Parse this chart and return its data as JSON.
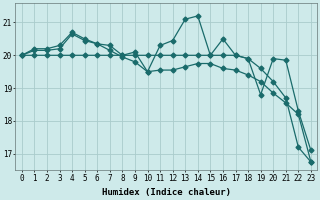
{
  "xlabel": "Humidex (Indice chaleur)",
  "background_color": "#ceeaea",
  "grid_color": "#aacccc",
  "line_color": "#1a6b6b",
  "x": [
    0,
    1,
    2,
    3,
    4,
    5,
    6,
    7,
    8,
    9,
    10,
    11,
    12,
    13,
    14,
    15,
    16,
    17,
    18,
    19,
    20,
    21,
    22,
    23
  ],
  "line1": [
    20.0,
    20.2,
    20.2,
    20.3,
    20.7,
    20.5,
    20.35,
    20.3,
    20.0,
    20.1,
    19.5,
    20.3,
    20.45,
    21.1,
    21.2,
    20.0,
    20.5,
    20.0,
    19.9,
    18.8,
    19.9,
    19.85,
    18.3,
    17.1
  ],
  "line2": [
    20.0,
    20.15,
    20.15,
    20.2,
    20.65,
    20.45,
    20.35,
    20.15,
    19.95,
    19.8,
    19.5,
    19.55,
    19.55,
    19.65,
    19.75,
    19.75,
    19.6,
    19.55,
    19.4,
    19.2,
    18.85,
    18.55,
    18.2,
    16.75
  ],
  "line3": [
    20.0,
    20.0,
    20.0,
    20.0,
    20.0,
    20.0,
    20.0,
    20.0,
    20.0,
    20.0,
    20.0,
    20.0,
    20.0,
    20.0,
    20.0,
    20.0,
    20.0,
    20.0,
    19.9,
    19.6,
    19.2,
    18.7,
    17.2,
    16.75
  ],
  "ylim": [
    16.5,
    21.6
  ],
  "yticks": [
    17,
    18,
    19,
    20,
    21
  ],
  "xticks": [
    0,
    1,
    2,
    3,
    4,
    5,
    6,
    7,
    8,
    9,
    10,
    11,
    12,
    13,
    14,
    15,
    16,
    17,
    18,
    19,
    20,
    21,
    22,
    23
  ],
  "markersize": 2.5,
  "linewidth": 0.9,
  "tick_fontsize": 5.5,
  "xlabel_fontsize": 6.5
}
